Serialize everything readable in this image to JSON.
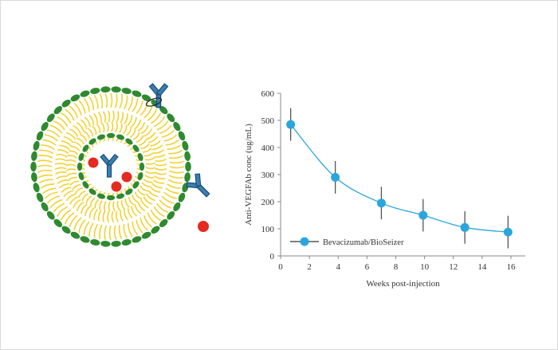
{
  "colors": {
    "series": "#2aa6dc",
    "errorbar": "#555555",
    "lipid_head": "#2f8a2f",
    "lipid_tail": "#f2d230",
    "drug_dot": "#e32b22",
    "antibody": "#3a7fb0"
  },
  "illustration": {
    "icons": [
      "liposome-icon",
      "antibody-icon",
      "drug-molecule-icon"
    ]
  },
  "chart_data": {
    "type": "line",
    "title": "",
    "xlabel": "Weeks post-injection",
    "ylabel": "Anti-VEGFAb conc (ug/mL)",
    "xlim": [
      0,
      17
    ],
    "ylim": [
      0,
      600
    ],
    "x_ticks": [
      0,
      2,
      4,
      6,
      8,
      10,
      12,
      14,
      16
    ],
    "y_ticks": [
      0,
      100,
      200,
      300,
      400,
      500,
      600
    ],
    "grid": false,
    "legend_position": "bottom-left",
    "series": [
      {
        "name": "Bevacizumab/BioSeizer",
        "x": [
          0.7,
          3.8,
          7.0,
          9.9,
          12.8,
          15.8
        ],
        "y": [
          485,
          290,
          195,
          150,
          105,
          88
        ],
        "error": [
          60,
          60,
          60,
          60,
          60,
          60
        ]
      }
    ]
  }
}
